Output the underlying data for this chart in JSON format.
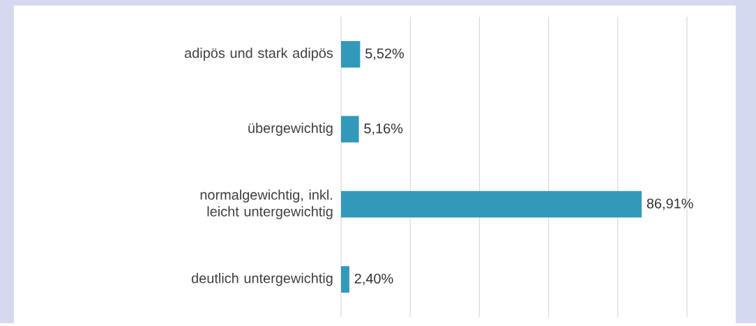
{
  "chart_data": {
    "type": "bar",
    "orientation": "horizontal",
    "categories": [
      "adipös und stark adipös",
      "übergewichtig",
      "normalgewichtig, inkl. leicht untergewichtig",
      "deutlich untergewichtig"
    ],
    "values": [
      5.52,
      5.16,
      86.91,
      2.4
    ],
    "value_labels": [
      "5,52%",
      "5,16%",
      "86,91%",
      "2,40%"
    ],
    "color": "#3399bb",
    "xlim": [
      0,
      100
    ],
    "xticks": [
      {
        "value": 0,
        "label": null
      },
      {
        "value": 20,
        "label": null
      },
      {
        "value": 40,
        "label": null
      },
      {
        "value": 60,
        "label": null
      },
      {
        "value": 80,
        "label": null
      },
      {
        "value": 100,
        "label": null
      }
    ],
    "grid": "x",
    "tick_labels": "y"
  }
}
